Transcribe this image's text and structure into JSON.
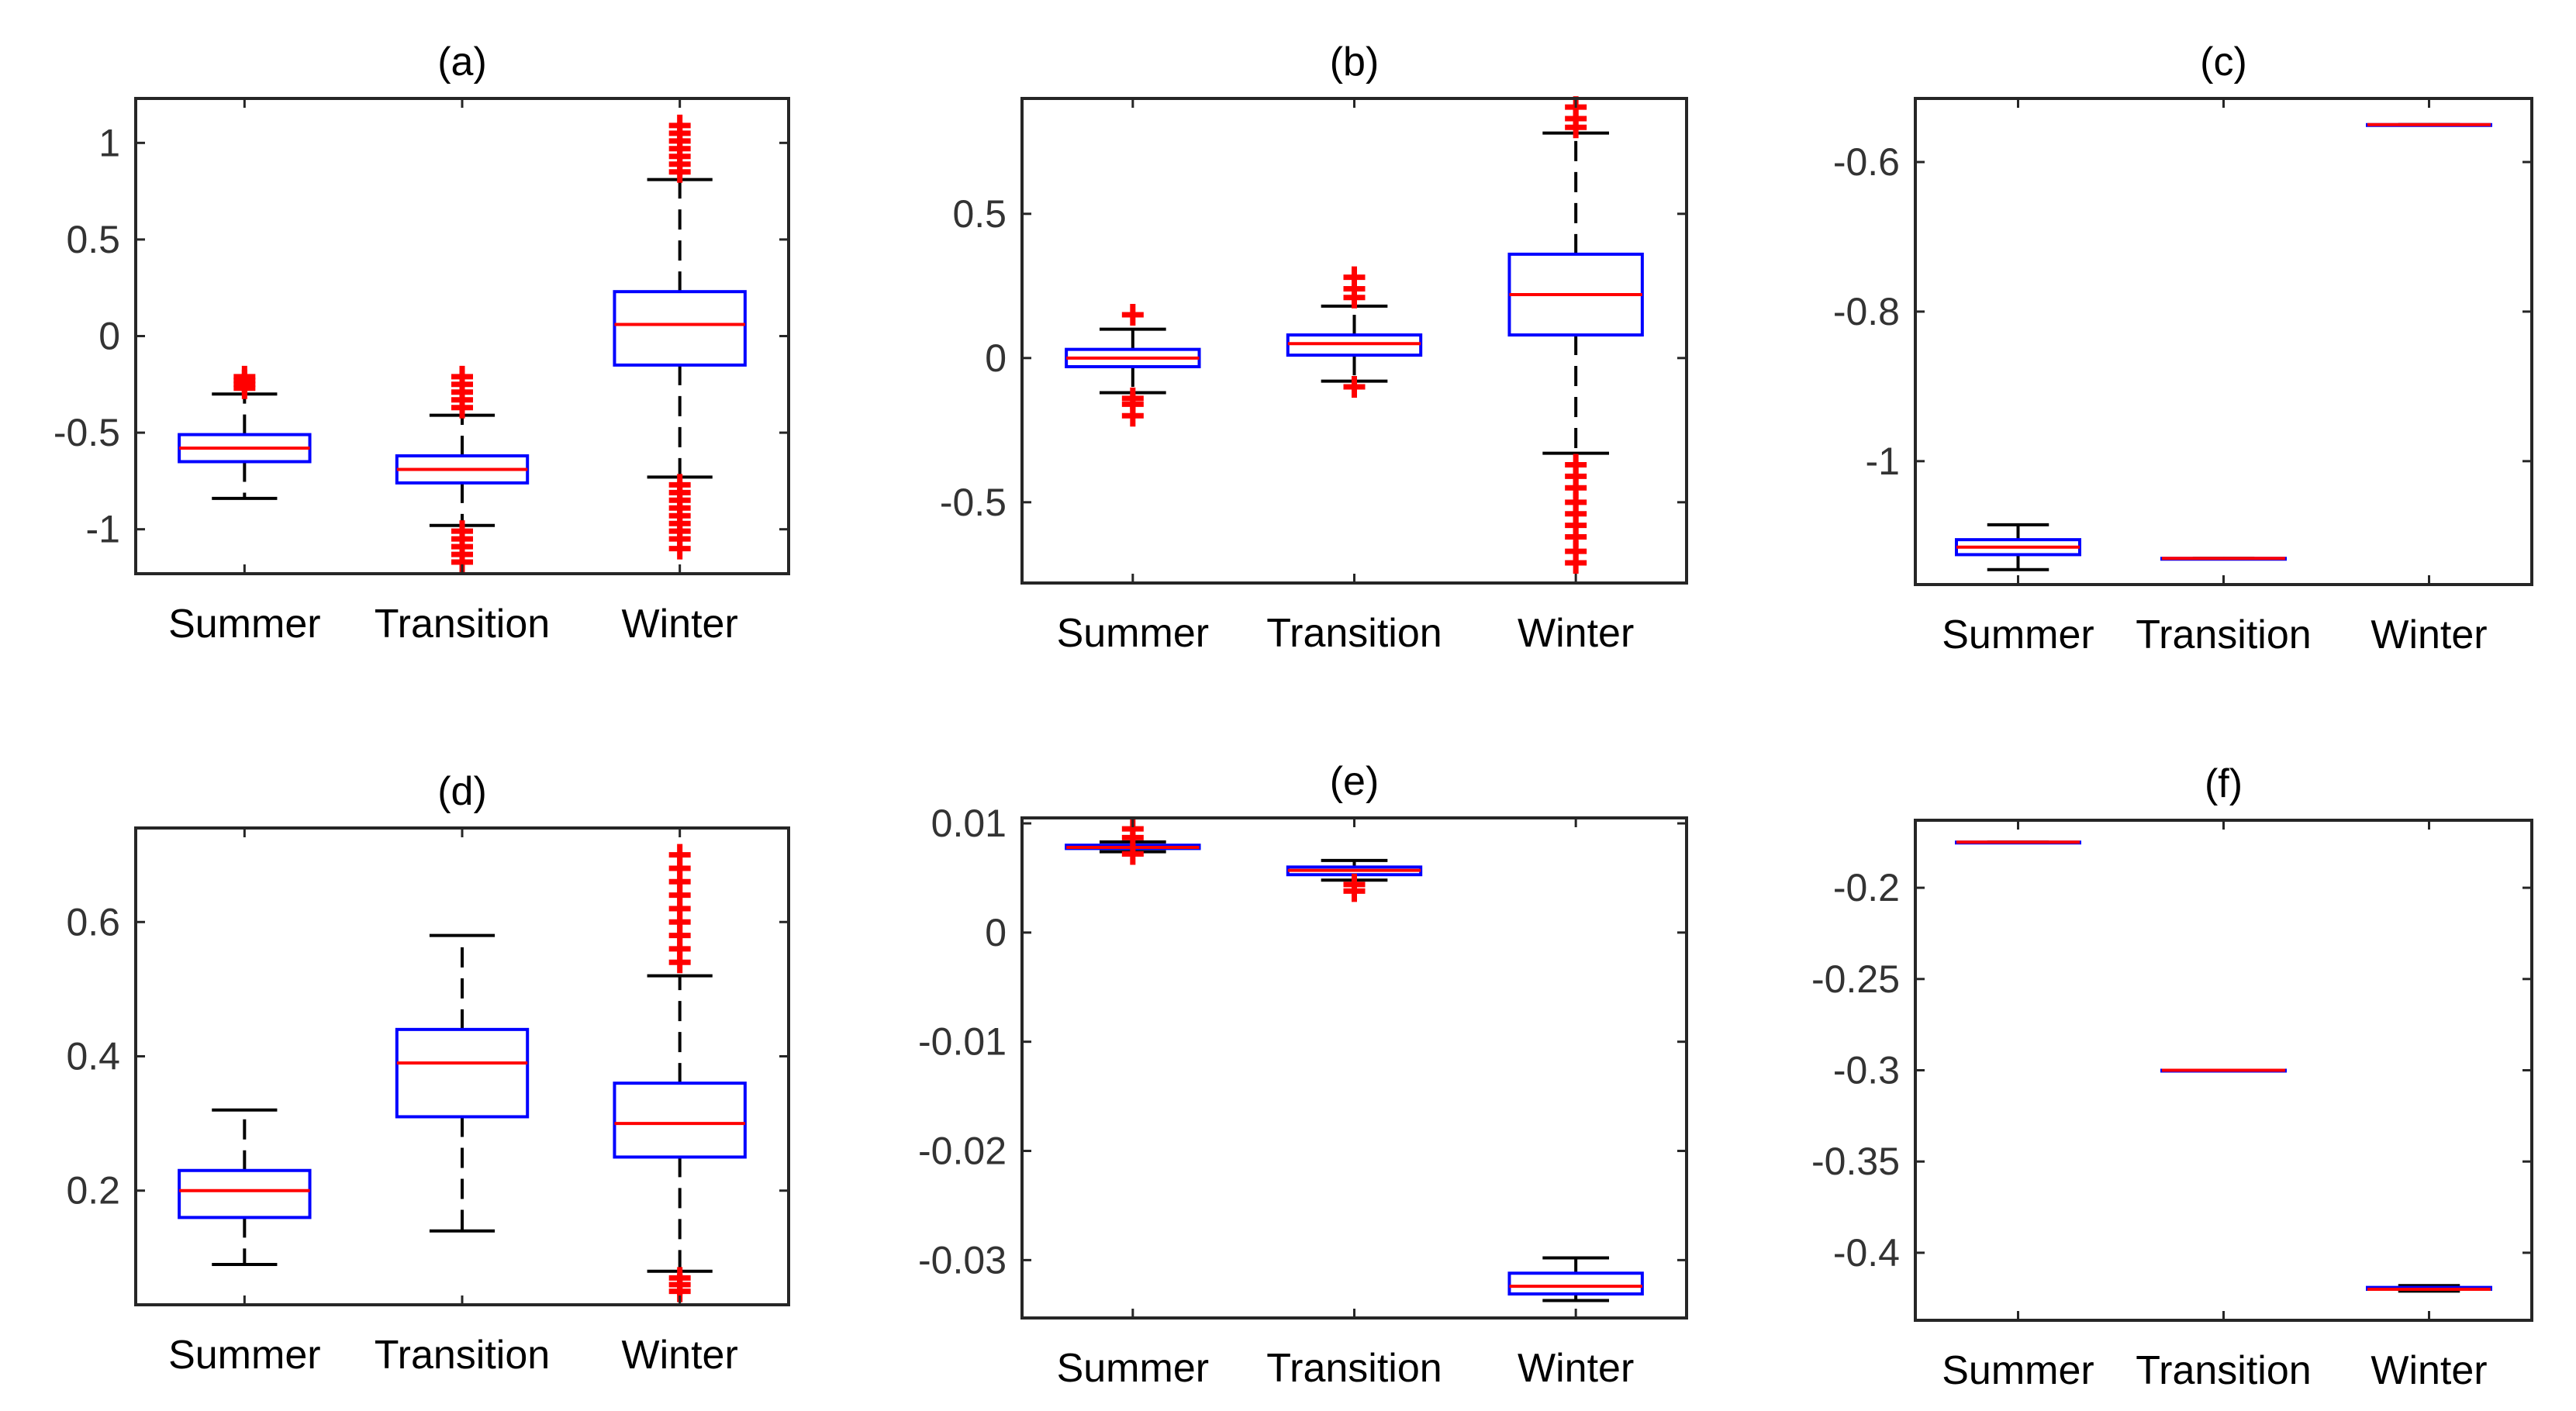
{
  "colors": {
    "box": "#0000ff",
    "median": "#ff0000",
    "outlier": "#ff0000",
    "whisker": "#000000",
    "axes": "#262626"
  },
  "chart_data": [
    {
      "panel": "(a)",
      "title": "(a)",
      "type": "boxplot",
      "categories": [
        "Summer",
        "Transition",
        "Winter"
      ],
      "ylim": [
        -1.23,
        1.23
      ],
      "yticks": [
        -1,
        -0.5,
        0,
        0.5,
        1
      ],
      "ytick_labels": [
        "-1",
        "-0.5",
        "0",
        "0.5",
        "1"
      ],
      "boxes": [
        {
          "category": "Summer",
          "whisker_low": -0.84,
          "q1": -0.65,
          "median": -0.58,
          "q3": -0.51,
          "whisker_high": -0.3,
          "outliers_high": [
            -0.27,
            -0.25,
            -0.23,
            -0.21
          ],
          "outliers_low": []
        },
        {
          "category": "Transition",
          "whisker_low": -0.98,
          "q1": -0.76,
          "median": -0.69,
          "q3": -0.62,
          "whisker_high": -0.41,
          "outliers_high": [
            -0.37,
            -0.33,
            -0.29,
            -0.25,
            -0.21
          ],
          "outliers_low": [
            -1.01,
            -1.05,
            -1.09,
            -1.13,
            -1.17
          ]
        },
        {
          "category": "Winter",
          "whisker_low": -0.73,
          "q1": -0.15,
          "median": 0.06,
          "q3": 0.23,
          "whisker_high": 0.81,
          "outliers_high": [
            0.85,
            0.89,
            0.93,
            0.97,
            1.01,
            1.05,
            1.09
          ],
          "outliers_low": [
            -0.77,
            -0.81,
            -0.85,
            -0.89,
            -0.93,
            -0.97,
            -1.01,
            -1.05,
            -1.1
          ]
        }
      ]
    },
    {
      "panel": "(b)",
      "title": "(b)",
      "type": "boxplot",
      "categories": [
        "Summer",
        "Transition",
        "Winter"
      ],
      "ylim": [
        -0.78,
        0.9
      ],
      "yticks": [
        -0.5,
        0,
        0.5
      ],
      "ytick_labels": [
        "-0.5",
        "0",
        "0.5"
      ],
      "boxes": [
        {
          "category": "Summer",
          "whisker_low": -0.12,
          "q1": -0.03,
          "median": 0.0,
          "q3": 0.03,
          "whisker_high": 0.1,
          "outliers_high": [
            0.15
          ],
          "outliers_low": [
            -0.14,
            -0.16,
            -0.2
          ]
        },
        {
          "category": "Transition",
          "whisker_low": -0.08,
          "q1": 0.01,
          "median": 0.05,
          "q3": 0.08,
          "whisker_high": 0.18,
          "outliers_high": [
            0.21,
            0.24,
            0.28
          ],
          "outliers_low": [
            -0.1
          ]
        },
        {
          "category": "Winter",
          "whisker_low": -0.33,
          "q1": 0.08,
          "median": 0.22,
          "q3": 0.36,
          "whisker_high": 0.78,
          "outliers_high": [
            0.8,
            0.83,
            0.87
          ],
          "outliers_low": [
            -0.37,
            -0.41,
            -0.45,
            -0.5,
            -0.54,
            -0.58,
            -0.62,
            -0.67,
            -0.71
          ]
        }
      ]
    },
    {
      "panel": "(c)",
      "title": "(c)",
      "type": "boxplot",
      "categories": [
        "Summer",
        "Transition",
        "Winter"
      ],
      "ylim": [
        -1.165,
        -0.515
      ],
      "yticks": [
        -1,
        -0.8,
        -0.6
      ],
      "ytick_labels": [
        "-1",
        "-0.8",
        "-0.6"
      ],
      "boxes": [
        {
          "category": "Summer",
          "whisker_low": -1.145,
          "q1": -1.125,
          "median": -1.115,
          "q3": -1.105,
          "whisker_high": -1.085,
          "outliers_high": [],
          "outliers_low": []
        },
        {
          "category": "Transition",
          "whisker_low": -1.13,
          "q1": -1.13,
          "median": -1.13,
          "q3": -1.13,
          "whisker_high": -1.13,
          "outliers_high": [],
          "outliers_low": []
        },
        {
          "category": "Winter",
          "whisker_low": -0.55,
          "q1": -0.55,
          "median": -0.55,
          "q3": -0.55,
          "whisker_high": -0.55,
          "outliers_high": [],
          "outliers_low": []
        }
      ]
    },
    {
      "panel": "(d)",
      "title": "(d)",
      "type": "boxplot",
      "categories": [
        "Summer",
        "Transition",
        "Winter"
      ],
      "ylim": [
        0.03,
        0.74
      ],
      "yticks": [
        0.2,
        0.4,
        0.6
      ],
      "ytick_labels": [
        "0.2",
        "0.4",
        "0.6"
      ],
      "boxes": [
        {
          "category": "Summer",
          "whisker_low": 0.09,
          "q1": 0.16,
          "median": 0.2,
          "q3": 0.23,
          "whisker_high": 0.32,
          "outliers_high": [],
          "outliers_low": []
        },
        {
          "category": "Transition",
          "whisker_low": 0.14,
          "q1": 0.31,
          "median": 0.39,
          "q3": 0.44,
          "whisker_high": 0.58,
          "outliers_high": [],
          "outliers_low": []
        },
        {
          "category": "Winter",
          "whisker_low": 0.08,
          "q1": 0.25,
          "median": 0.3,
          "q3": 0.36,
          "whisker_high": 0.52,
          "outliers_high": [
            0.54,
            0.56,
            0.58,
            0.6,
            0.62,
            0.64,
            0.66,
            0.68,
            0.7
          ],
          "outliers_low": [
            0.07,
            0.06,
            0.05
          ]
        }
      ]
    },
    {
      "panel": "(e)",
      "title": "(e)",
      "type": "boxplot",
      "categories": [
        "Summer",
        "Transition",
        "Winter"
      ],
      "ylim": [
        -0.0353,
        0.0105
      ],
      "yticks": [
        -0.03,
        -0.02,
        -0.01,
        0,
        0.01
      ],
      "ytick_labels": [
        "-0.03",
        "-0.02",
        "-0.01",
        "0",
        "0.01"
      ],
      "boxes": [
        {
          "category": "Summer",
          "whisker_low": 0.0074,
          "q1": 0.0077,
          "median": 0.0078,
          "q3": 0.008,
          "whisker_high": 0.0083,
          "outliers_high": [
            0.0087,
            0.0095
          ],
          "outliers_low": [
            0.0072
          ]
        },
        {
          "category": "Transition",
          "whisker_low": 0.0048,
          "q1": 0.0053,
          "median": 0.0057,
          "q3": 0.006,
          "whisker_high": 0.0066,
          "outliers_high": [],
          "outliers_low": [
            0.0044,
            0.0038
          ]
        },
        {
          "category": "Winter",
          "whisker_low": -0.0337,
          "q1": -0.0331,
          "median": -0.0324,
          "q3": -0.0312,
          "whisker_high": -0.0298,
          "outliers_high": [],
          "outliers_low": []
        }
      ]
    },
    {
      "panel": "(f)",
      "title": "(f)",
      "type": "boxplot",
      "categories": [
        "Summer",
        "Transition",
        "Winter"
      ],
      "ylim": [
        -0.437,
        -0.163
      ],
      "yticks": [
        -0.4,
        -0.35,
        -0.3,
        -0.25,
        -0.2
      ],
      "ytick_labels": [
        "-0.4",
        "-0.35",
        "-0.3",
        "-0.25",
        "-0.2"
      ],
      "boxes": [
        {
          "category": "Summer",
          "whisker_low": -0.175,
          "q1": -0.175,
          "median": -0.175,
          "q3": -0.175,
          "whisker_high": -0.175,
          "outliers_high": [],
          "outliers_low": []
        },
        {
          "category": "Transition",
          "whisker_low": -0.3,
          "q1": -0.3,
          "median": -0.3,
          "q3": -0.3,
          "whisker_high": -0.3,
          "outliers_high": [],
          "outliers_low": []
        },
        {
          "category": "Winter",
          "whisker_low": -0.421,
          "q1": -0.42,
          "median": -0.42,
          "q3": -0.419,
          "whisker_high": -0.418,
          "outliers_high": [],
          "outliers_low": []
        }
      ]
    }
  ]
}
